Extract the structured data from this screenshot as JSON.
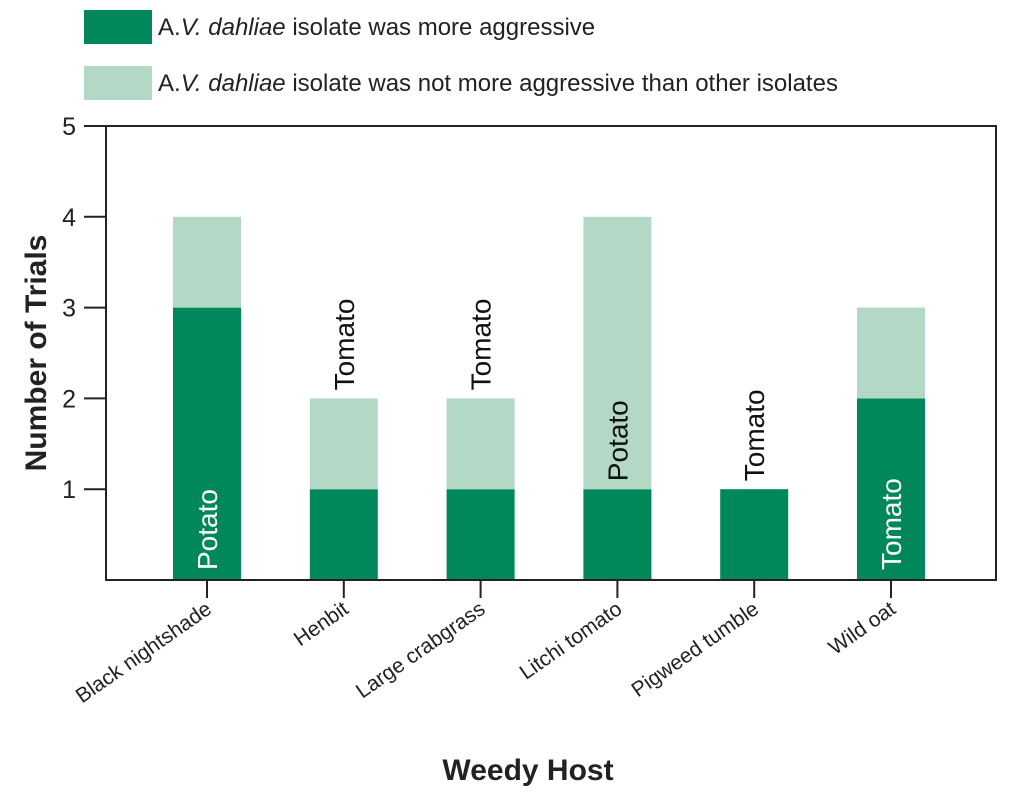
{
  "chart_data": {
    "type": "bar",
    "stacked": true,
    "title": "",
    "xlabel": "Weedy Host",
    "ylabel": "Number of Trials",
    "ylim": [
      0,
      5
    ],
    "yticks": [
      1,
      2,
      3,
      4,
      5
    ],
    "grid": false,
    "legend_placement": "top",
    "categories": [
      "Black nightshade",
      "Henbit",
      "Large crabgrass",
      "Litchi tomato",
      "Pigweed tumble",
      "Wild oat"
    ],
    "series": [
      {
        "name_prefix": "A.",
        "name_italic": "V. dahliae",
        "name_suffix": " isolate was more aggressive",
        "color": "#00885A",
        "values": [
          3,
          1,
          1,
          1,
          1,
          2
        ]
      },
      {
        "name_prefix": "A.",
        "name_italic": "V. dahliae",
        "name_suffix": " isolate was not more aggressive than other isolates",
        "color": "#B4D8C6",
        "values": [
          1,
          1,
          1,
          3,
          0,
          1
        ]
      }
    ],
    "annotations": [
      {
        "category": "Black nightshade",
        "text": "Potato",
        "placement": "inside-dark",
        "color": "#ffffff"
      },
      {
        "category": "Henbit",
        "text": "Tomato",
        "placement": "above",
        "color": "#111111"
      },
      {
        "category": "Large crabgrass",
        "text": "Tomato",
        "placement": "above",
        "color": "#111111"
      },
      {
        "category": "Litchi tomato",
        "text": "Potato",
        "placement": "inside-light",
        "color": "#111111"
      },
      {
        "category": "Pigweed tumble",
        "text": "Tomato",
        "placement": "above",
        "color": "#111111"
      },
      {
        "category": "Wild oat",
        "text": "Tomato",
        "placement": "inside-dark",
        "color": "#ffffff"
      }
    ]
  }
}
